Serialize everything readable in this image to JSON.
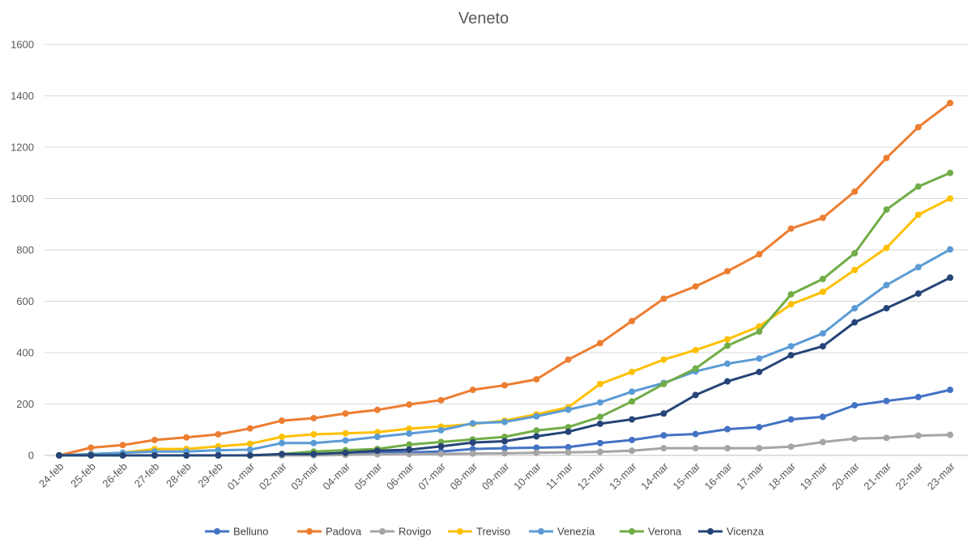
{
  "chart_data": {
    "type": "line",
    "title": "Veneto",
    "xlabel": "",
    "ylabel": "",
    "ylim": [
      0,
      1600
    ],
    "yticks": [
      0,
      200,
      400,
      600,
      800,
      1000,
      1200,
      1400,
      1600
    ],
    "grid": true,
    "legend_position": "bottom",
    "categories": [
      "24-feb",
      "25-feb",
      "26-feb",
      "27-feb",
      "28-feb",
      "29-feb",
      "01-mar",
      "02-mar",
      "03-mar",
      "04-mar",
      "05-mar",
      "06-mar",
      "07-mar",
      "08-mar",
      "09-mar",
      "10-mar",
      "11-mar",
      "12-mar",
      "13-mar",
      "14-mar",
      "15-mar",
      "16-mar",
      "17-mar",
      "18-mar",
      "19-mar",
      "20-mar",
      "21-mar",
      "22-mar",
      "23-mar"
    ],
    "series": [
      {
        "name": "Belluno",
        "color": "#4472c4",
        "values": [
          0,
          0,
          0,
          0,
          0,
          0,
          0,
          0,
          3,
          5,
          10,
          12,
          15,
          25,
          28,
          30,
          32,
          48,
          60,
          78,
          83,
          102,
          110,
          140,
          150,
          195,
          212,
          227,
          255
        ]
      },
      {
        "name": "Padova",
        "color": "#ed7d31",
        "values": [
          0,
          30,
          40,
          60,
          70,
          82,
          105,
          135,
          145,
          163,
          177,
          198,
          215,
          255,
          273,
          296,
          373,
          437,
          523,
          610,
          658,
          717,
          783,
          883,
          925,
          1027,
          1158,
          1278,
          1372
        ]
      },
      {
        "name": "Rovigo",
        "color": "#a5a5a5",
        "values": [
          0,
          0,
          0,
          0,
          0,
          0,
          0,
          0,
          0,
          2,
          4,
          5,
          6,
          7,
          8,
          10,
          12,
          14,
          18,
          28,
          28,
          28,
          28,
          34,
          52,
          65,
          68,
          77,
          80
        ]
      },
      {
        "name": "Treviso",
        "color": "#ffc000",
        "values": [
          0,
          5,
          10,
          25,
          25,
          35,
          45,
          72,
          82,
          86,
          90,
          104,
          112,
          122,
          135,
          160,
          187,
          278,
          325,
          373,
          410,
          452,
          502,
          588,
          637,
          722,
          808,
          937,
          1000
        ]
      },
      {
        "name": "Venezia",
        "color": "#5b9bd5",
        "values": [
          0,
          5,
          10,
          15,
          15,
          20,
          22,
          48,
          48,
          58,
          72,
          85,
          98,
          125,
          130,
          152,
          178,
          206,
          248,
          282,
          327,
          357,
          377,
          425,
          475,
          573,
          663,
          733,
          802
        ]
      },
      {
        "name": "Verona",
        "color": "#70ad47",
        "values": [
          0,
          0,
          0,
          0,
          0,
          0,
          0,
          5,
          15,
          20,
          25,
          42,
          52,
          62,
          72,
          97,
          110,
          150,
          210,
          278,
          338,
          427,
          482,
          627,
          687,
          787,
          957,
          1047,
          1100
        ]
      },
      {
        "name": "Vicenza",
        "color": "#264478",
        "values": [
          0,
          0,
          0,
          0,
          0,
          0,
          0,
          5,
          5,
          10,
          18,
          22,
          35,
          50,
          55,
          74,
          92,
          123,
          140,
          163,
          235,
          288,
          325,
          390,
          425,
          518,
          573,
          630,
          692
        ]
      }
    ]
  }
}
